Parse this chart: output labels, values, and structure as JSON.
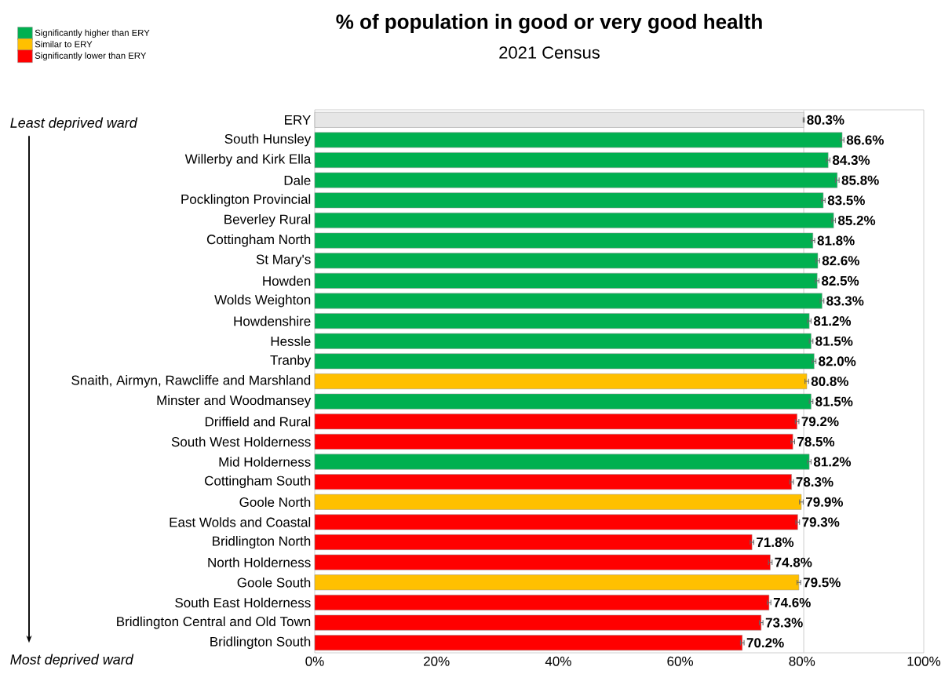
{
  "chart_data": {
    "type": "bar",
    "orientation": "horizontal",
    "title": "% of population in good or very good health",
    "subtitle": "2021 Census",
    "annotations": [
      "Least deprived ward",
      "Most deprived ward"
    ],
    "categories": [
      "ERY",
      "South Hunsley",
      "Willerby and Kirk Ella",
      "Dale",
      "Pocklington Provincial",
      "Beverley Rural",
      "Cottingham North",
      "St Mary's",
      "Howden",
      "Wolds Weighton",
      "Howdenshire",
      "Hessle",
      "Tranby",
      "Snaith, Airmyn, Rawcliffe and Marshland",
      "Minster and Woodmansey",
      "Driffield and Rural",
      "South West Holderness",
      "Mid Holderness",
      "Cottingham South",
      "Goole North",
      "East Wolds and Coastal",
      "Bridlington North",
      "North Holderness",
      "Goole South",
      "South East Holderness",
      "Bridlington Central and Old Town",
      "Bridlington South"
    ],
    "series": [
      {
        "color": "#e6e6e6",
        "values": [
          80.3,
          null,
          null,
          null,
          null,
          null,
          null,
          null,
          null,
          null,
          null,
          null,
          null,
          null,
          null,
          null,
          null,
          null,
          null,
          null,
          null,
          null,
          null,
          null,
          null,
          null,
          null
        ],
        "errors": [
          0.1,
          null,
          null,
          null,
          null,
          null,
          null,
          null,
          null,
          null,
          null,
          null,
          null,
          null,
          null,
          null,
          null,
          null,
          null,
          null,
          null,
          null,
          null,
          null,
          null,
          null,
          null
        ],
        "value_labels": [
          "80.3%",
          null,
          null,
          null,
          null,
          null,
          null,
          null,
          null,
          null,
          null,
          null,
          null,
          null,
          null,
          null,
          null,
          null,
          null,
          null,
          null,
          null,
          null,
          null,
          null,
          null,
          null
        ]
      },
      {
        "name": "Significantly higher than ERY",
        "color": "#00b050",
        "values": [
          null,
          86.6,
          84.3,
          85.8,
          83.5,
          85.2,
          81.8,
          82.6,
          82.5,
          83.3,
          81.2,
          81.5,
          82.0,
          null,
          81.5,
          null,
          null,
          81.2,
          null,
          null,
          null,
          null,
          null,
          null,
          null,
          null,
          null
        ],
        "errors": [
          null,
          0.3,
          0.3,
          0.3,
          0.3,
          0.3,
          0.3,
          0.3,
          0.3,
          0.3,
          0.3,
          0.3,
          0.3,
          null,
          0.3,
          null,
          null,
          0.3,
          null,
          null,
          null,
          null,
          null,
          null,
          null,
          null,
          null
        ],
        "value_labels": [
          null,
          "86.6%",
          "84.3%",
          "85.8%",
          "83.5%",
          "85.2%",
          "81.8%",
          "82.6%",
          "82.5%",
          "83.3%",
          "81.2%",
          "81.5%",
          "82.0%",
          null,
          "81.5%",
          null,
          null,
          "81.2%",
          null,
          null,
          null,
          null,
          null,
          null,
          null,
          null,
          null
        ]
      },
      {
        "name": "Similar to ERY",
        "color": "#ffc000",
        "values": [
          null,
          null,
          null,
          null,
          null,
          null,
          null,
          null,
          null,
          null,
          null,
          null,
          null,
          80.8,
          null,
          null,
          null,
          null,
          null,
          79.9,
          null,
          null,
          null,
          79.5,
          null,
          null,
          null
        ],
        "errors": [
          null,
          null,
          null,
          null,
          null,
          null,
          null,
          null,
          null,
          null,
          null,
          null,
          null,
          0.3,
          null,
          null,
          null,
          null,
          null,
          0.3,
          null,
          null,
          null,
          0.3,
          null,
          null,
          null
        ],
        "value_labels": [
          null,
          null,
          null,
          null,
          null,
          null,
          null,
          null,
          null,
          null,
          null,
          null,
          null,
          "80.8%",
          null,
          null,
          null,
          null,
          null,
          "79.9%",
          null,
          null,
          null,
          "79.5%",
          null,
          null,
          null
        ]
      },
      {
        "name": "Significantly lower than ERY",
        "color": "#ff0000",
        "values": [
          null,
          null,
          null,
          null,
          null,
          null,
          null,
          null,
          null,
          null,
          null,
          null,
          null,
          null,
          null,
          79.2,
          78.5,
          null,
          78.3,
          null,
          79.3,
          71.8,
          74.8,
          null,
          74.6,
          73.3,
          70.2
        ],
        "errors": [
          null,
          null,
          null,
          null,
          null,
          null,
          null,
          null,
          null,
          null,
          null,
          null,
          null,
          null,
          null,
          0.3,
          0.3,
          null,
          0.3,
          null,
          0.3,
          0.3,
          0.3,
          null,
          0.3,
          0.3,
          0.3
        ],
        "value_labels": [
          null,
          null,
          null,
          null,
          null,
          null,
          null,
          null,
          null,
          null,
          null,
          null,
          null,
          null,
          null,
          "79.2%",
          "78.5%",
          null,
          "78.3%",
          null,
          "79.3%",
          "71.8%",
          "74.8%",
          null,
          "74.6%",
          "73.3%",
          "70.2%"
        ]
      }
    ],
    "xlim": [
      0,
      100
    ],
    "xticks": [
      {
        "value": 0,
        "label": "0%"
      },
      {
        "value": 20,
        "label": "20%"
      },
      {
        "value": 40,
        "label": "40%"
      },
      {
        "value": 60,
        "label": "60%"
      },
      {
        "value": 80,
        "label": "80%"
      },
      {
        "value": 100,
        "label": "100%"
      }
    ],
    "ref_lines": [
      {
        "axis": "x",
        "value": 80.3,
        "color": "#d9d9d9"
      }
    ],
    "legend": "top left"
  }
}
